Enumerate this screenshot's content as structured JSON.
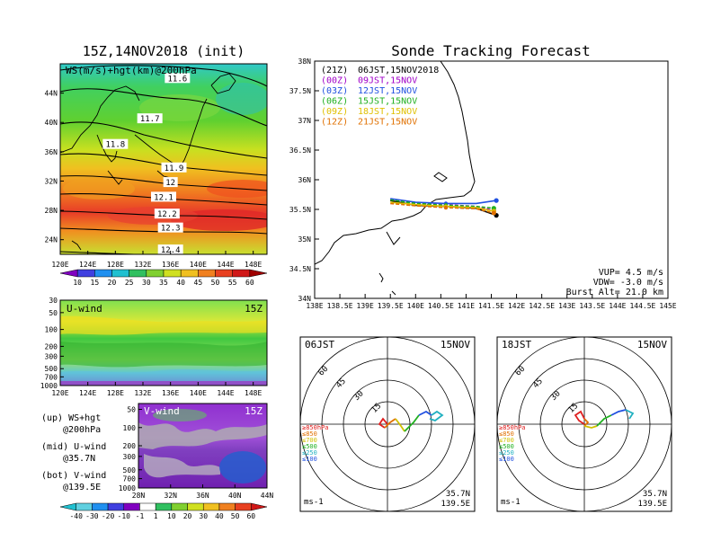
{
  "ws_map": {
    "title": "15Z,14NOV2018 (init)",
    "label": "WS(m/s)+hgt(km)@200hPa",
    "lat_ticks": [
      "44N",
      "40N",
      "36N",
      "32N",
      "28N",
      "24N"
    ],
    "lon_ticks": [
      "120E",
      "124E",
      "128E",
      "132E",
      "136E",
      "140E",
      "144E",
      "148E"
    ],
    "contour_labels": [
      "11.6",
      "11.7",
      "11.8",
      "11.9",
      "12",
      "12.1",
      "12.2",
      "12.3",
      "12.4"
    ],
    "colorbar_labels": [
      "10",
      "15",
      "20",
      "25",
      "30",
      "35",
      "40",
      "45",
      "50",
      "55",
      "60"
    ]
  },
  "u_wind": {
    "label": "U-wind",
    "time": "15Z",
    "p_ticks": [
      "30",
      "50",
      "100",
      "200",
      "300",
      "500",
      "700",
      "1000"
    ],
    "lon_ticks": [
      "120E",
      "124E",
      "128E",
      "132E",
      "136E",
      "140E",
      "144E",
      "148E"
    ]
  },
  "v_wind": {
    "label": "V-wind",
    "time": "15Z",
    "p_ticks": [
      "50",
      "100",
      "200",
      "300",
      "500",
      "700",
      "1000"
    ],
    "lat_ticks": [
      "28N",
      "32N",
      "36N",
      "40N",
      "44N"
    ]
  },
  "legend": {
    "up_1": "(up) WS+hgt",
    "up_2": "@200hPa",
    "mid_1": "(mid) U-wind",
    "mid_2": "@35.7N",
    "bot_1": "(bot) V-wind",
    "bot_2": "@139.5E"
  },
  "wind_colorbar_labels": [
    "-40",
    "-30",
    "-20",
    "-10",
    "-1",
    "1",
    "10",
    "20",
    "30",
    "40",
    "50",
    "60"
  ],
  "track_map": {
    "title": "Sonde Tracking Forecast",
    "lat_ticks": [
      "38N",
      "37.5N",
      "37N",
      "36.5N",
      "36N",
      "35.5N",
      "35N",
      "34.5N",
      "34N"
    ],
    "lon_ticks": [
      "138E",
      "138.5E",
      "139E",
      "139.5E",
      "140E",
      "140.5E",
      "141E",
      "141.5E",
      "142E",
      "142.5E",
      "143E",
      "143.5E",
      "144E",
      "144.5E",
      "145E"
    ],
    "vup": "VUP= 4.5 m/s",
    "vdw": "VDW= -3.0 m/s",
    "burst": "Burst Alt= 21.0 km"
  },
  "track_legend": [
    {
      "z": "(21Z)",
      "label": "06JST,15NOV2018",
      "color": "#000000"
    },
    {
      "z": "(00Z)",
      "label": "09JST,15NOV",
      "color": "#a000c8"
    },
    {
      "z": "(03Z)",
      "label": "12JST,15NOV",
      "color": "#2050e0"
    },
    {
      "z": "(06Z)",
      "label": "15JST,15NOV",
      "color": "#20b020"
    },
    {
      "z": "(09Z)",
      "label": "18JST,15NOV",
      "color": "#e0c000"
    },
    {
      "z": "(12Z)",
      "label": "21JST,15NOV",
      "color": "#e07000"
    }
  ],
  "hodo_left": {
    "time": "06JST",
    "date": "15NOV",
    "rings": [
      "15",
      "30",
      "45",
      "60"
    ],
    "levels": [
      {
        "label": "≥850hPa",
        "color": "#e02020"
      },
      {
        "label": "≤850",
        "color": "#e07000"
      },
      {
        "label": "≤700",
        "color": "#d0c000"
      },
      {
        "label": "≤500",
        "color": "#20b020"
      },
      {
        "label": "≤250",
        "color": "#20b0c0"
      },
      {
        "label": "≤100",
        "color": "#2050e0"
      }
    ],
    "unit": "ms-1",
    "lat": "35.7N",
    "lon": "139.5E"
  },
  "hodo_right": {
    "time": "18JST",
    "date": "15NOV",
    "rings": [
      "15",
      "30",
      "45",
      "60"
    ],
    "levels": [
      {
        "label": "≥850hPa",
        "color": "#e02020"
      },
      {
        "label": "≤850",
        "color": "#e07000"
      },
      {
        "label": "≤700",
        "color": "#d0c000"
      },
      {
        "label": "≤500",
        "color": "#20b020"
      },
      {
        "label": "≤250",
        "color": "#20b0c0"
      },
      {
        "label": "≤100",
        "color": "#2050e0"
      }
    ],
    "unit": "ms-1",
    "lat": "35.7N",
    "lon": "139.5E"
  },
  "chart_data": [
    {
      "type": "line",
      "title": "Sonde Tracking Forecast",
      "xlim": [
        138,
        145
      ],
      "ylim": [
        34,
        38
      ],
      "series": [
        {
          "name": "(21Z) 06JST,15NOV2018",
          "x": [
            139.5,
            140.0,
            140.6,
            141.2,
            141.6
          ],
          "y": [
            35.65,
            35.57,
            35.55,
            35.52,
            35.4
          ]
        },
        {
          "name": "(00Z) 09JST,15NOV",
          "x": [
            139.5,
            140.0,
            140.6,
            141.2,
            141.55
          ],
          "y": [
            35.67,
            35.6,
            35.58,
            35.55,
            35.48
          ]
        },
        {
          "name": "(03Z) 12JST,15NOV",
          "x": [
            139.5,
            140.0,
            140.6,
            141.2,
            141.6
          ],
          "y": [
            35.68,
            35.62,
            35.6,
            35.6,
            35.65
          ]
        },
        {
          "name": "(06Z) 15JST,15NOV",
          "x": [
            139.5,
            140.0,
            140.6,
            141.2,
            141.55
          ],
          "y": [
            35.66,
            35.6,
            35.57,
            35.55,
            35.52
          ]
        },
        {
          "name": "(09Z) 18JST,15NOV",
          "x": [
            139.5,
            140.0,
            140.6,
            141.2,
            141.55
          ],
          "y": [
            35.62,
            35.58,
            35.55,
            35.53,
            35.47
          ]
        },
        {
          "name": "(12Z) 21JST,15NOV",
          "x": [
            139.5,
            140.0,
            140.6,
            141.2,
            141.55
          ],
          "y": [
            35.6,
            35.56,
            35.53,
            35.51,
            35.44
          ]
        }
      ]
    },
    {
      "type": "heatmap",
      "title": "15Z,14NOV2018 (init)",
      "xlim": [
        120,
        150
      ],
      "ylim": [
        22,
        48
      ],
      "contours": [
        {
          "label": "11.6",
          "lon": 137,
          "lat": 46
        },
        {
          "label": "11.7",
          "lon": 133,
          "lat": 40.5
        },
        {
          "label": "11.8",
          "lon": 128,
          "lat": 37
        },
        {
          "label": "11.9",
          "lon": 136.5,
          "lat": 33.8
        },
        {
          "label": "12",
          "lon": 136,
          "lat": 31.8
        },
        {
          "label": "12.1",
          "lon": 135,
          "lat": 29.8
        },
        {
          "label": "12.2",
          "lon": 135.5,
          "lat": 27.5
        },
        {
          "label": "12.3",
          "lon": 136,
          "lat": 25.6
        },
        {
          "label": "12.4",
          "lon": 136,
          "lat": 22.6
        }
      ]
    }
  ]
}
